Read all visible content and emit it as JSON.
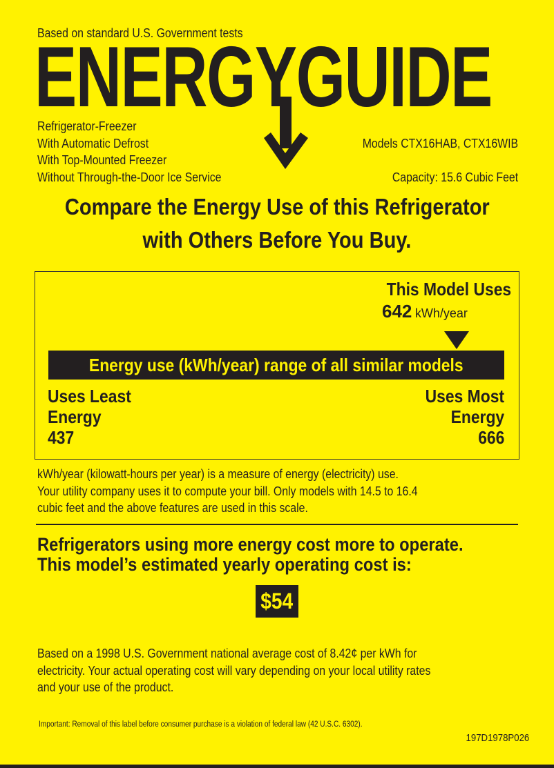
{
  "header": {
    "tests_note": "Based on standard U.S. Government tests",
    "logo_text": "ENERGYGUIDE",
    "features": [
      "Refrigerator-Freezer",
      "With Automatic Defrost",
      "With Top-Mounted Freezer",
      "Without Through-the-Door Ice Service"
    ],
    "models": "Models  CTX16HAB, CTX16WIB",
    "capacity": "Capacity: 15.6 Cubic Feet"
  },
  "headline": {
    "line1": "Compare the Energy Use of this Refrigerator",
    "line2": "with Others Before You Buy."
  },
  "range": {
    "this_model_label": "This Model Uses",
    "this_model_value": "642",
    "unit": "kWh/year",
    "bar_label": "Energy use (kWh/year) range of all similar models",
    "least_label": [
      "Uses Least",
      "Energy"
    ],
    "least_value": "437",
    "most_label": [
      "Uses Most",
      "Energy"
    ],
    "most_value": "666",
    "min": 437,
    "max": 666,
    "value": 642
  },
  "explanation": [
    "kWh/year (kilowatt-hours per year) is a measure of energy (electricity) use.",
    "Your utility company uses it to compute your bill. Only models with 14.5 to 16.4",
    "cubic feet and the above features are used in this scale."
  ],
  "cost": {
    "line1": "Refrigerators using more energy cost more to operate.",
    "line2": "This model’s estimated yearly operating cost is:",
    "value": "$54",
    "basis": [
      "Based on a 1998 U.S. Government national average cost of 8.42¢ per kWh for",
      "electricity. Your actual operating cost will vary depending on your local utility rates",
      "and your use of the product."
    ]
  },
  "footer": {
    "legal": "Important: Removal of this label before consumer purchase is a violation of federal law (42 U.S.C. 6302).",
    "code": "197D1978P026"
  },
  "colors": {
    "background": "#fff200",
    "ink": "#231f20"
  }
}
